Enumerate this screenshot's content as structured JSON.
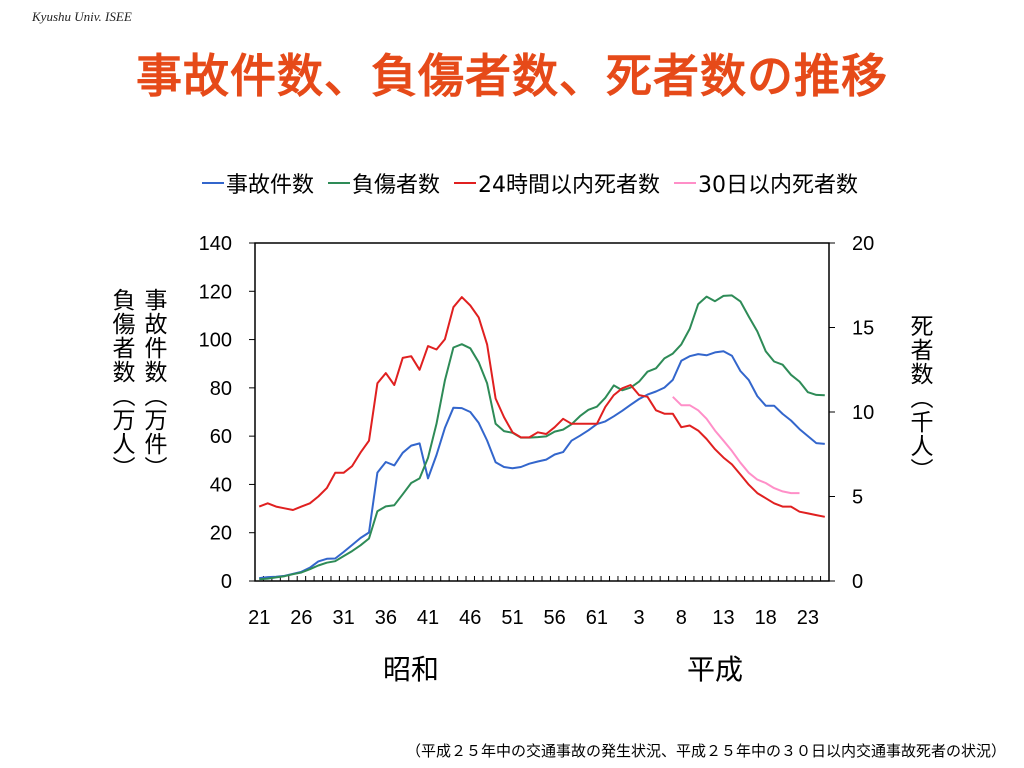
{
  "header": {
    "org": "Kyushu Univ. ISEE",
    "title": "事故件数、負傷者数、死者数の推移"
  },
  "axis_labels": {
    "left": [
      "事故件数（万件）",
      "負傷者数（万人）"
    ],
    "right": "死者数（千人）"
  },
  "era_labels": {
    "showa": "昭和",
    "heisei": "平成"
  },
  "source": "（平成２５年中の交通事故の発生状況、平成２５年中の３０日以内交通事故死者の状況）",
  "chart_data": {
    "type": "line",
    "title": "",
    "xlabel": "",
    "ylabel_left": "事故件数（万件） 負傷者数（万人）",
    "ylabel_right": "死者数（千人）",
    "x_start": 21,
    "x_count": 68,
    "x_tick_labels": [
      "21",
      "26",
      "31",
      "36",
      "41",
      "46",
      "51",
      "56",
      "61",
      "3",
      "8",
      "13",
      "18",
      "23"
    ],
    "ylim_left": [
      0,
      140
    ],
    "yticks_left": [
      0,
      20,
      40,
      60,
      80,
      100,
      120,
      140
    ],
    "ylim_right": [
      0,
      20
    ],
    "yticks_right": [
      0,
      5,
      10,
      15,
      20
    ],
    "legend_position": "top",
    "grid": false,
    "series": [
      {
        "name": "事故件数",
        "axis": "left",
        "color": "#3366cc",
        "values": [
          1.2,
          1.6,
          1.8,
          2.1,
          3.0,
          3.8,
          5.5,
          8.1,
          9.2,
          9.3,
          12.0,
          14.9,
          17.8,
          20.1,
          44.9,
          49.3,
          47.9,
          53.1,
          56.1,
          57.0,
          42.5,
          52.2,
          63.4,
          71.8,
          71.6,
          70.0,
          65.5,
          58.2,
          49.2,
          47.2,
          46.7,
          47.2,
          48.6,
          49.5,
          50.3,
          52.4,
          53.4,
          58.1,
          60.2,
          62.4,
          65.0,
          66.1,
          68.2,
          70.5,
          73.0,
          75.4,
          77.2,
          78.5,
          80.1,
          83.3,
          91.2,
          93.1,
          94.0,
          93.5,
          94.7,
          95.2,
          93.3,
          87.0,
          83.2,
          76.6,
          72.6,
          72.6,
          69.2,
          66.5,
          62.9,
          60.0,
          57.1,
          56.8
        ]
      },
      {
        "name": "負傷者数",
        "axis": "left",
        "color": "#2e8b57",
        "values": [
          0.7,
          1.0,
          1.5,
          2.0,
          2.8,
          3.5,
          4.9,
          6.4,
          7.6,
          8.2,
          10.3,
          12.4,
          14.8,
          17.6,
          28.9,
          30.9,
          31.4,
          35.9,
          40.6,
          42.5,
          51.0,
          65.1,
          83.1,
          96.7,
          98.1,
          96.4,
          90.6,
          81.9,
          65.1,
          62.1,
          61.4,
          59.4,
          59.4,
          59.6,
          59.9,
          61.9,
          62.7,
          64.9,
          68.3,
          70.9,
          72.2,
          75.9,
          81.0,
          79.0,
          80.1,
          82.6,
          86.7,
          88.1,
          92.2,
          94.2,
          98.0,
          104.4,
          114.7,
          117.8,
          115.9,
          118.1,
          118.3,
          115.8,
          109.5,
          103.4,
          95.2,
          90.9,
          89.6,
          85.4,
          82.6,
          78.2,
          77.1,
          76.9
        ]
      },
      {
        "name": "24時間以内死者数",
        "axis": "right",
        "color": "#e02020",
        "values": [
          4.4,
          4.6,
          4.4,
          4.3,
          4.2,
          4.4,
          4.6,
          5.0,
          5.5,
          6.4,
          6.4,
          6.8,
          7.6,
          8.3,
          11.7,
          12.3,
          11.6,
          13.2,
          13.3,
          12.5,
          13.9,
          13.7,
          14.3,
          16.2,
          16.8,
          16.3,
          15.6,
          14.0,
          10.8,
          9.7,
          8.8,
          8.5,
          8.5,
          8.8,
          8.7,
          9.1,
          9.6,
          9.3,
          9.3,
          9.3,
          9.3,
          10.3,
          11.0,
          11.4,
          11.6,
          11.0,
          10.9,
          10.1,
          9.9,
          9.9,
          9.1,
          9.2,
          8.9,
          8.4,
          7.8,
          7.3,
          6.9,
          6.3,
          5.7,
          5.2,
          4.9,
          4.6,
          4.4,
          4.4,
          4.1,
          4.0,
          3.9,
          3.8
        ]
      },
      {
        "name": "30日以内死者数",
        "axis": "right",
        "color": "#ff8fc8",
        "x_offset": 49,
        "values": [
          10.9,
          10.4,
          10.4,
          10.1,
          9.6,
          8.9,
          8.3,
          7.7,
          7.0,
          6.4,
          6.0,
          5.8,
          5.5,
          5.3,
          5.2,
          5.2
        ]
      }
    ]
  }
}
